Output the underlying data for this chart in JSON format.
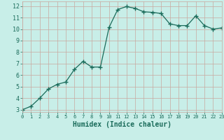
{
  "x": [
    0,
    1,
    2,
    3,
    4,
    5,
    6,
    7,
    8,
    9,
    10,
    11,
    12,
    13,
    14,
    15,
    16,
    17,
    18,
    19,
    20,
    21,
    22,
    23
  ],
  "y": [
    3.0,
    3.3,
    4.0,
    4.8,
    5.2,
    5.4,
    6.5,
    7.2,
    6.7,
    6.7,
    10.15,
    11.7,
    11.95,
    11.8,
    11.5,
    11.45,
    11.35,
    10.45,
    10.3,
    10.3,
    11.15,
    10.3,
    10.0,
    10.1
  ],
  "line_color": "#1a6b5a",
  "marker": "+",
  "marker_size": 4,
  "bg_color": "#c8eee8",
  "grid_color": "#c8a8a0",
  "xlabel": "Humidex (Indice chaleur)",
  "xlim": [
    0,
    23
  ],
  "ylim": [
    2.8,
    12.4
  ],
  "yticks": [
    3,
    4,
    5,
    6,
    7,
    8,
    9,
    10,
    11,
    12
  ],
  "xticks": [
    0,
    1,
    2,
    3,
    4,
    5,
    6,
    7,
    8,
    9,
    10,
    11,
    12,
    13,
    14,
    15,
    16,
    17,
    18,
    19,
    20,
    21,
    22,
    23
  ],
  "xlabel_fontsize": 7,
  "tick_fontsize": 6,
  "axis_color": "#1a6b5a"
}
